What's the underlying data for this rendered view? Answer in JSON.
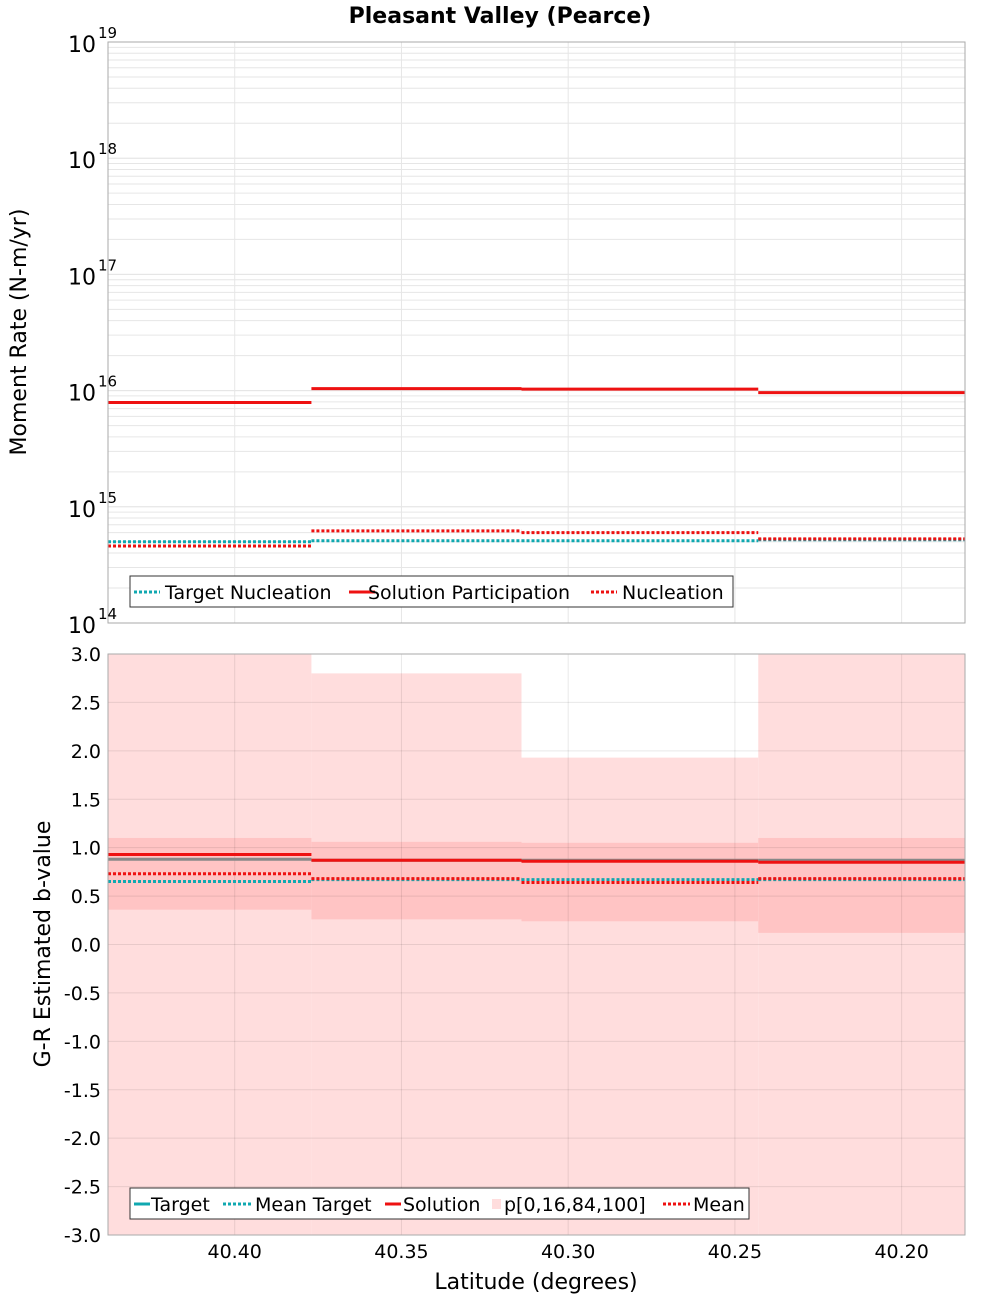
{
  "title": "Pleasant Valley (Pearce)",
  "xlabel": "Latitude (degrees)",
  "colors": {
    "red": "#ee1111",
    "teal": "#10a8b0",
    "gray": "#888888",
    "band_outer": "#ffdddd",
    "band_inner": "#ffc4c4",
    "grid": "#e6e6e6",
    "frame": "#aaaaaa"
  },
  "chart_data": [
    {
      "id": "moment",
      "type": "line",
      "yscale": "log",
      "ylabel": "Moment Rate (N-m/yr)",
      "xlim": [
        40.438,
        40.181
      ],
      "ylim": [
        100000000000000.0,
        1e+19
      ],
      "ytick_bases": [
        "10",
        "10",
        "10",
        "10",
        "10",
        "10"
      ],
      "ytick_exps": [
        "14",
        "15",
        "16",
        "17",
        "18",
        "19"
      ],
      "bin_edges": [
        40.438,
        40.377,
        40.314,
        40.243,
        40.181
      ],
      "series": [
        {
          "name": "Target Nucleation",
          "style": "teal-dotted",
          "values": [
            500000000000000.0,
            510000000000000.0,
            510000000000000.0,
            520000000000000.0
          ]
        },
        {
          "name": "Solution Participation",
          "style": "red-solid",
          "values": [
            7900000000000000.0,
            1.04e+16,
            1.03e+16,
            9600000000000000.0
          ]
        },
        {
          "name": "Nucleation",
          "style": "red-dotted",
          "values": [
            460000000000000.0,
            620000000000000.0,
            600000000000000.0,
            530000000000000.0
          ]
        }
      ],
      "legend": [
        "Target Nucleation",
        "Solution Participation",
        "Nucleation"
      ],
      "legend_loc": "bottom-left"
    },
    {
      "id": "bvalue",
      "type": "line",
      "yscale": "linear",
      "ylabel": "G-R Estimated b-value",
      "xlim": [
        40.438,
        40.181
      ],
      "ylim": [
        -3.0,
        3.0
      ],
      "yticks": [
        -3.0,
        -2.5,
        -2.0,
        -1.5,
        -1.0,
        -0.5,
        0.0,
        0.5,
        1.0,
        1.5,
        2.0,
        2.5,
        3.0
      ],
      "ytick_labels": [
        "-3.0",
        "-2.5",
        "-2.0",
        "-1.5",
        "-1.0",
        "-0.5",
        "0.0",
        "0.5",
        "1.0",
        "1.5",
        "2.0",
        "2.5",
        "3.0"
      ],
      "xticks": [
        40.4,
        40.35,
        40.3,
        40.25,
        40.2
      ],
      "xtick_labels": [
        "40.40",
        "40.35",
        "40.30",
        "40.25",
        "40.20"
      ],
      "bin_edges": [
        40.438,
        40.377,
        40.314,
        40.243,
        40.181
      ],
      "bands": {
        "name": "p[0,16,84,100]",
        "p0": [
          -3.0,
          -3.0,
          -3.0,
          -3.0
        ],
        "p16": [
          0.36,
          0.26,
          0.24,
          0.12
        ],
        "p84": [
          1.1,
          1.06,
          1.05,
          1.1
        ],
        "p100": [
          3.0,
          2.8,
          1.93,
          3.0
        ]
      },
      "series": [
        {
          "name": "Target",
          "style": "gray-solid",
          "values": [
            0.88,
            0.87,
            0.87,
            0.87
          ]
        },
        {
          "name": "Mean Target",
          "style": "teal-dotted",
          "values": [
            0.65,
            0.67,
            0.67,
            0.67
          ]
        },
        {
          "name": "Solution",
          "style": "red-solid",
          "values": [
            0.93,
            0.87,
            0.86,
            0.85
          ]
        },
        {
          "name": "Mean",
          "style": "red-dotted",
          "values": [
            0.73,
            0.68,
            0.64,
            0.68
          ]
        }
      ],
      "legend": [
        "Target",
        "Mean Target",
        "Solution",
        "p[0,16,84,100]",
        "Mean"
      ],
      "legend_loc": "bottom-left"
    }
  ]
}
